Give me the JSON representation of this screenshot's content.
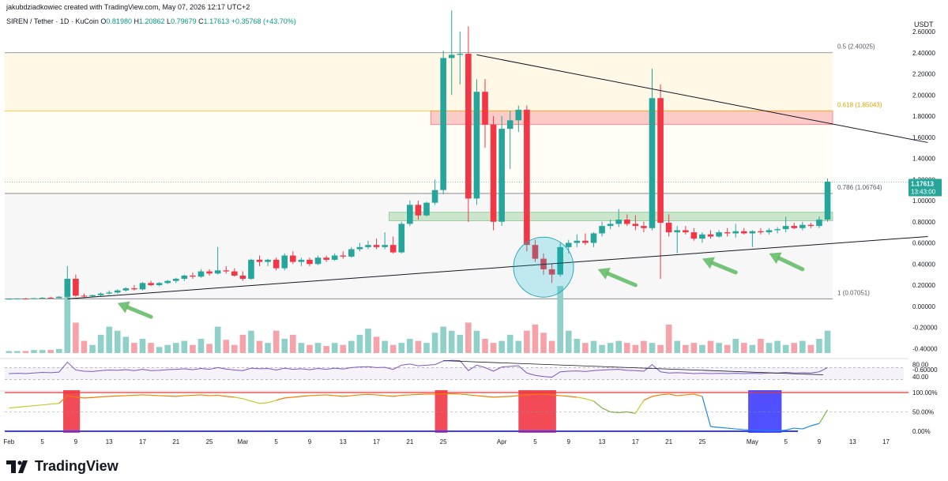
{
  "header": {
    "credit": "jakubdziadkowiec created with TradingView.com, May 07, 2026 12:17 UTC+2",
    "symbol": "SIREN / Tether · 1D · KuCoin",
    "ohlc": [
      {
        "label": "O",
        "value": "0.81980"
      },
      {
        "label": "H",
        "value": "1.20862"
      },
      {
        "label": "L",
        "value": "0.79679"
      },
      {
        "label": "C",
        "value": "1.17613"
      },
      {
        "label": "",
        "value": "+0.35768 (+43.70%)"
      }
    ],
    "unit": "USDT"
  },
  "brand": {
    "name": "TradingView"
  },
  "colors": {
    "up": "#26a69a",
    "down": "#f23645",
    "up_vol": "#8fd1c9",
    "down_vol": "#f5a3a9",
    "rsi_line": "#7e57c2",
    "trend": "#131722",
    "fib_gold": "#f5b70a",
    "supply_zone": "#f23645",
    "demand_zone": "#4caf50",
    "arrow": "#66bb6a",
    "circle": "#00bcd4"
  },
  "chart_data": {
    "type": "candlestick",
    "x_axis": {
      "labels": [
        {
          "i": 0,
          "t": "Feb"
        },
        {
          "i": 4,
          "t": "5"
        },
        {
          "i": 8,
          "t": "9"
        },
        {
          "i": 12,
          "t": "13"
        },
        {
          "i": 16,
          "t": "17"
        },
        {
          "i": 20,
          "t": "21"
        },
        {
          "i": 24,
          "t": "25"
        },
        {
          "i": 28,
          "t": "Mar"
        },
        {
          "i": 32,
          "t": "5"
        },
        {
          "i": 36,
          "t": "9"
        },
        {
          "i": 40,
          "t": "13"
        },
        {
          "i": 44,
          "t": "17"
        },
        {
          "i": 48,
          "t": "21"
        },
        {
          "i": 52,
          "t": "25"
        },
        {
          "i": 59,
          "t": "Apr"
        },
        {
          "i": 63,
          "t": "5"
        },
        {
          "i": 67,
          "t": "9"
        },
        {
          "i": 71,
          "t": "13"
        },
        {
          "i": 75,
          "t": "17"
        },
        {
          "i": 79,
          "t": "21"
        },
        {
          "i": 83,
          "t": "25"
        },
        {
          "i": 89,
          "t": "May"
        },
        {
          "i": 93,
          "t": "5"
        },
        {
          "i": 97,
          "t": "9"
        },
        {
          "i": 101,
          "t": "13"
        },
        {
          "i": 105,
          "t": "17"
        }
      ],
      "slots": 108
    },
    "y_axis": {
      "ticks": [
        "2.60000",
        "2.40000",
        "2.20000",
        "2.00000",
        "1.80000",
        "1.60000",
        "1.40000",
        "1.20000",
        "1.00000",
        "0.80000",
        "0.60000",
        "0.40000",
        "0.20000",
        "0.00000",
        "-0.20000",
        "-0.40000",
        "-0.60000"
      ],
      "range": [
        -0.6,
        2.6
      ]
    },
    "price_tag": {
      "value": "1.17613",
      "countdown": "13:43:00"
    },
    "candles": [
      [
        0.07,
        0.074,
        0.068,
        0.071
      ],
      [
        0.071,
        0.075,
        0.069,
        0.073
      ],
      [
        0.073,
        0.078,
        0.07,
        0.072
      ],
      [
        0.072,
        0.08,
        0.071,
        0.076
      ],
      [
        0.076,
        0.085,
        0.073,
        0.08
      ],
      [
        0.08,
        0.09,
        0.075,
        0.078
      ],
      [
        0.078,
        0.095,
        0.076,
        0.09
      ],
      [
        0.09,
        0.38,
        0.08,
        0.26
      ],
      [
        0.26,
        0.3,
        0.09,
        0.1
      ],
      [
        0.1,
        0.12,
        0.08,
        0.095
      ],
      [
        0.095,
        0.11,
        0.085,
        0.105
      ],
      [
        0.105,
        0.13,
        0.095,
        0.12
      ],
      [
        0.12,
        0.15,
        0.11,
        0.13
      ],
      [
        0.13,
        0.16,
        0.12,
        0.15
      ],
      [
        0.15,
        0.18,
        0.14,
        0.17
      ],
      [
        0.17,
        0.2,
        0.15,
        0.16
      ],
      [
        0.16,
        0.23,
        0.15,
        0.22
      ],
      [
        0.22,
        0.24,
        0.19,
        0.2
      ],
      [
        0.2,
        0.23,
        0.19,
        0.22
      ],
      [
        0.22,
        0.25,
        0.21,
        0.24
      ],
      [
        0.24,
        0.27,
        0.22,
        0.26
      ],
      [
        0.26,
        0.3,
        0.24,
        0.29
      ],
      [
        0.29,
        0.32,
        0.26,
        0.28
      ],
      [
        0.28,
        0.35,
        0.27,
        0.33
      ],
      [
        0.33,
        0.35,
        0.29,
        0.31
      ],
      [
        0.31,
        0.56,
        0.3,
        0.34
      ],
      [
        0.34,
        0.38,
        0.31,
        0.33
      ],
      [
        0.33,
        0.36,
        0.28,
        0.29
      ],
      [
        0.29,
        0.33,
        0.24,
        0.26
      ],
      [
        0.26,
        0.45,
        0.25,
        0.44
      ],
      [
        0.44,
        0.48,
        0.38,
        0.42
      ],
      [
        0.42,
        0.45,
        0.38,
        0.44
      ],
      [
        0.44,
        0.46,
        0.34,
        0.36
      ],
      [
        0.36,
        0.5,
        0.34,
        0.48
      ],
      [
        0.48,
        0.52,
        0.4,
        0.42
      ],
      [
        0.42,
        0.46,
        0.38,
        0.44
      ],
      [
        0.44,
        0.46,
        0.38,
        0.4
      ],
      [
        0.4,
        0.48,
        0.39,
        0.46
      ],
      [
        0.46,
        0.48,
        0.42,
        0.44
      ],
      [
        0.44,
        0.5,
        0.43,
        0.48
      ],
      [
        0.48,
        0.52,
        0.45,
        0.47
      ],
      [
        0.47,
        0.56,
        0.46,
        0.54
      ],
      [
        0.54,
        0.6,
        0.52,
        0.56
      ],
      [
        0.56,
        0.62,
        0.54,
        0.58
      ],
      [
        0.58,
        0.64,
        0.54,
        0.56
      ],
      [
        0.56,
        0.7,
        0.54,
        0.58
      ],
      [
        0.58,
        0.66,
        0.5,
        0.51
      ],
      [
        0.51,
        0.8,
        0.5,
        0.78
      ],
      [
        0.78,
        1.0,
        0.76,
        0.96
      ],
      [
        0.96,
        1.0,
        0.82,
        0.86
      ],
      [
        0.86,
        0.99,
        0.85,
        0.98
      ],
      [
        0.98,
        1.2,
        0.96,
        1.1
      ],
      [
        1.1,
        2.42,
        1.06,
        2.35
      ],
      [
        2.35,
        2.8,
        2.0,
        2.38
      ],
      [
        2.38,
        2.6,
        2.1,
        2.39
      ],
      [
        2.39,
        2.65,
        0.8,
        1.02
      ],
      [
        1.02,
        2.15,
        0.96,
        2.03
      ],
      [
        2.03,
        2.15,
        1.5,
        1.72
      ],
      [
        1.72,
        1.8,
        0.72,
        0.8
      ],
      [
        0.8,
        1.8,
        0.76,
        1.68
      ],
      [
        1.68,
        1.85,
        1.3,
        1.76
      ],
      [
        1.76,
        1.9,
        1.65,
        1.86
      ],
      [
        1.86,
        1.9,
        0.52,
        0.58
      ],
      [
        0.58,
        0.63,
        0.42,
        0.45
      ],
      [
        0.45,
        0.5,
        0.3,
        0.35
      ],
      [
        0.35,
        0.4,
        0.22,
        0.3
      ],
      [
        0.3,
        0.6,
        0.28,
        0.56
      ],
      [
        0.56,
        0.63,
        0.5,
        0.6
      ],
      [
        0.6,
        0.68,
        0.56,
        0.62
      ],
      [
        0.62,
        0.69,
        0.58,
        0.6
      ],
      [
        0.6,
        0.7,
        0.56,
        0.69
      ],
      [
        0.69,
        0.8,
        0.66,
        0.76
      ],
      [
        0.76,
        0.82,
        0.73,
        0.78
      ],
      [
        0.78,
        0.92,
        0.75,
        0.82
      ],
      [
        0.82,
        0.87,
        0.76,
        0.78
      ],
      [
        0.78,
        0.86,
        0.72,
        0.76
      ],
      [
        0.76,
        0.8,
        0.7,
        0.74
      ],
      [
        0.74,
        2.25,
        0.72,
        1.97
      ],
      [
        1.97,
        2.1,
        0.26,
        0.79
      ],
      [
        0.79,
        0.87,
        0.66,
        0.7
      ],
      [
        0.7,
        0.76,
        0.5,
        0.72
      ],
      [
        0.72,
        0.76,
        0.68,
        0.7
      ],
      [
        0.7,
        0.74,
        0.62,
        0.64
      ],
      [
        0.64,
        0.7,
        0.6,
        0.68
      ],
      [
        0.68,
        0.72,
        0.64,
        0.66
      ],
      [
        0.66,
        0.72,
        0.65,
        0.7
      ],
      [
        0.7,
        0.74,
        0.66,
        0.69
      ],
      [
        0.69,
        0.78,
        0.65,
        0.71
      ],
      [
        0.71,
        0.74,
        0.68,
        0.69
      ],
      [
        0.69,
        0.72,
        0.56,
        0.71
      ],
      [
        0.71,
        0.74,
        0.68,
        0.7
      ],
      [
        0.7,
        0.74,
        0.68,
        0.72
      ],
      [
        0.72,
        0.75,
        0.69,
        0.73
      ],
      [
        0.73,
        0.85,
        0.7,
        0.76
      ],
      [
        0.76,
        0.79,
        0.73,
        0.74
      ],
      [
        0.74,
        0.8,
        0.72,
        0.77
      ],
      [
        0.77,
        0.79,
        0.74,
        0.76
      ],
      [
        0.76,
        0.85,
        0.74,
        0.82
      ],
      [
        0.82,
        1.21,
        0.8,
        1.18
      ]
    ],
    "volume": [
      2,
      2,
      2,
      3,
      3,
      3,
      4,
      70,
      30,
      12,
      8,
      18,
      26,
      22,
      16,
      10,
      14,
      10,
      6,
      8,
      10,
      12,
      8,
      14,
      9,
      26,
      13,
      8,
      18,
      22,
      12,
      10,
      22,
      14,
      18,
      10,
      8,
      10,
      7,
      10,
      8,
      12,
      18,
      24,
      16,
      12,
      8,
      10,
      14,
      12,
      10,
      20,
      26,
      22,
      18,
      30,
      22,
      14,
      10,
      12,
      18,
      12,
      22,
      28,
      20,
      12,
      66,
      22,
      14,
      10,
      12,
      8,
      10,
      12,
      10,
      8,
      12,
      10,
      8,
      28,
      12,
      8,
      10,
      8,
      12,
      10,
      8,
      14,
      10,
      8,
      14,
      10,
      12,
      8,
      10,
      12,
      8,
      14,
      22
    ],
    "rsi": [
      50,
      51,
      50,
      52,
      54,
      53,
      55,
      88,
      62,
      58,
      57,
      60,
      62,
      61,
      63,
      60,
      64,
      60,
      61,
      63,
      64,
      66,
      63,
      67,
      64,
      70,
      65,
      62,
      60,
      68,
      66,
      67,
      62,
      68,
      64,
      66,
      63,
      67,
      64,
      68,
      65,
      70,
      72,
      73,
      70,
      71,
      64,
      78,
      82,
      76,
      78,
      80,
      92,
      94,
      93,
      60,
      78,
      70,
      58,
      72,
      74,
      76,
      52,
      44,
      40,
      38,
      56,
      58,
      59,
      57,
      60,
      62,
      63,
      64,
      61,
      60,
      58,
      80,
      56,
      52,
      53,
      52,
      50,
      51,
      50,
      51,
      50,
      51,
      50,
      51,
      50,
      52,
      52,
      54,
      52,
      53,
      52,
      56,
      70
    ],
    "rsi_axis": [
      "80.00",
      "40.00"
    ],
    "osc_axis": [
      "100.00%",
      "50.00%",
      "0.00%"
    ],
    "osc": [
      60,
      62,
      64,
      66,
      68,
      70,
      72,
      92,
      88,
      86,
      87,
      89,
      90,
      91,
      92,
      93,
      94,
      93,
      92,
      91,
      90,
      92,
      93,
      94,
      92,
      93,
      90,
      88,
      84,
      78,
      72,
      74,
      80,
      86,
      88,
      90,
      92,
      93,
      94,
      92,
      90,
      92,
      94,
      95,
      94,
      92,
      90,
      93,
      94,
      95,
      96,
      96,
      97,
      97,
      96,
      94,
      92,
      90,
      88,
      89,
      90,
      92,
      94,
      95,
      96,
      94,
      92,
      90,
      88,
      84,
      78,
      60,
      50,
      48,
      50,
      46,
      80,
      90,
      94,
      96,
      92,
      94,
      96,
      90,
      12,
      10,
      8,
      6,
      4,
      3,
      2,
      1,
      1,
      3,
      8,
      6,
      14,
      20,
      55
    ],
    "fib_levels": [
      {
        "label": "0.5 (2.40025)",
        "value": 2.40025,
        "color": "#787b86"
      },
      {
        "label": "0.618 (1.85043)",
        "value": 1.85043,
        "color": "#f5b70a"
      },
      {
        "label": "0.786 (1.06764)",
        "value": 1.06764,
        "color": "#787b86"
      },
      {
        "label": "1 (0.07051)",
        "value": 0.07051,
        "color": "#787b86"
      }
    ],
    "zones": [
      {
        "type": "supply",
        "x0": 50.5,
        "x1": 109,
        "y0": 1.72,
        "y1": 1.85
      },
      {
        "type": "demand",
        "x0": 45.5,
        "x1": 109,
        "y0": 0.81,
        "y1": 0.89
      }
    ],
    "trendlines": [
      {
        "x0": 56,
        "y0": 2.38,
        "x1": 110,
        "y1": 1.55
      },
      {
        "x0": 7,
        "y0": 0.07,
        "x1": 110,
        "y1": 0.66
      }
    ],
    "arrows": [
      {
        "x0": 17,
        "y0": -0.1,
        "x1": 13,
        "y1": 0.03
      },
      {
        "x0": 75,
        "y0": 0.2,
        "x1": 70.5,
        "y1": 0.35
      },
      {
        "x0": 87,
        "y0": 0.32,
        "x1": 83,
        "y1": 0.45
      },
      {
        "x0": 95,
        "y0": 0.35,
        "x1": 91,
        "y1": 0.5
      }
    ],
    "circle": {
      "x": 64,
      "y": 0.37
    }
  }
}
